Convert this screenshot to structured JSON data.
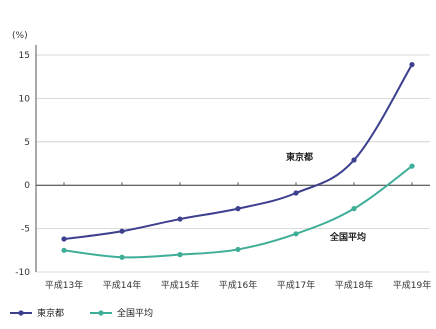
{
  "chart_data": {
    "type": "line",
    "ylabel": "(%)",
    "ylim": [
      -10,
      15
    ],
    "yticks": [
      15,
      10,
      5,
      0,
      -5,
      -10
    ],
    "grid": true,
    "legend_placement": "bottom-left",
    "categories": [
      "平成13年",
      "平成14年",
      "平成15年",
      "平成16年",
      "平成17年",
      "平成18年",
      "平成19年"
    ],
    "series": [
      {
        "name": "東京都",
        "values": [
          -6.2,
          -5.3,
          -3.9,
          -2.7,
          -0.9,
          2.9,
          13.9
        ],
        "color": "#3d3f8f"
      },
      {
        "name": "全国平均",
        "values": [
          -7.5,
          -8.3,
          -8.0,
          -7.4,
          -5.6,
          -2.7,
          2.2
        ],
        "color": "#3fae98"
      }
    ],
    "annotations": [
      {
        "text": "東京都",
        "series": 0
      },
      {
        "text": "全国平均",
        "series": 1
      }
    ]
  }
}
